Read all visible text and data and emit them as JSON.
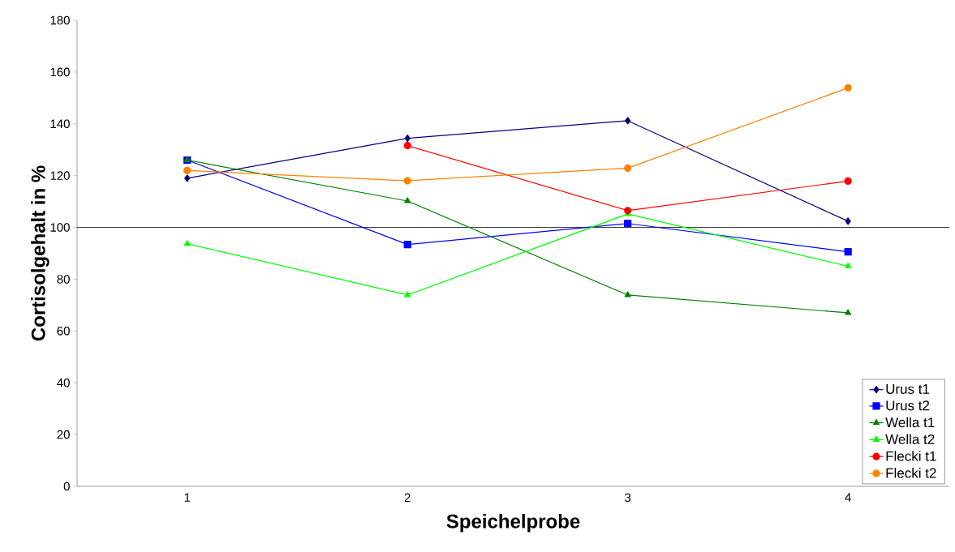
{
  "chart_data": {
    "type": "line",
    "xlabel": "Speichelprobe",
    "ylabel": "Cortisolgehalt in %",
    "categories": [
      "1",
      "2",
      "3",
      "4"
    ],
    "ylim": [
      0,
      180
    ],
    "yticks": [
      0,
      20,
      40,
      60,
      80,
      100,
      120,
      140,
      160,
      180
    ],
    "grid": false,
    "legend": "bottom right",
    "line_style": "solid",
    "ref_lines": [
      {
        "axis": "y",
        "value": 100,
        "color": "#000000"
      }
    ],
    "series": [
      {
        "name": "Urus t1",
        "color": "#000080",
        "marker": "diamond",
        "values": [
          119,
          134.4,
          141.2,
          102.4
        ]
      },
      {
        "name": "Urus t2",
        "color": "#0000ff",
        "marker": "square",
        "values": [
          126,
          93.4,
          101.5,
          90.6
        ]
      },
      {
        "name": "Wella t1",
        "color": "#008000",
        "marker": "triangle",
        "values": [
          126,
          110.2,
          73.9,
          67
        ]
      },
      {
        "name": "Wella t2",
        "color": "#00ff00",
        "marker": "triangle",
        "values": [
          93.7,
          73.9,
          105.2,
          85
        ]
      },
      {
        "name": "Flecki t1",
        "color": "#ff0000",
        "marker": "circle",
        "values": [
          null,
          131.6,
          106.5,
          117.9
        ]
      },
      {
        "name": "Flecki t2",
        "color": "#ff8000",
        "marker": "circle",
        "values": [
          122,
          118,
          122.9,
          153.9
        ]
      }
    ]
  }
}
